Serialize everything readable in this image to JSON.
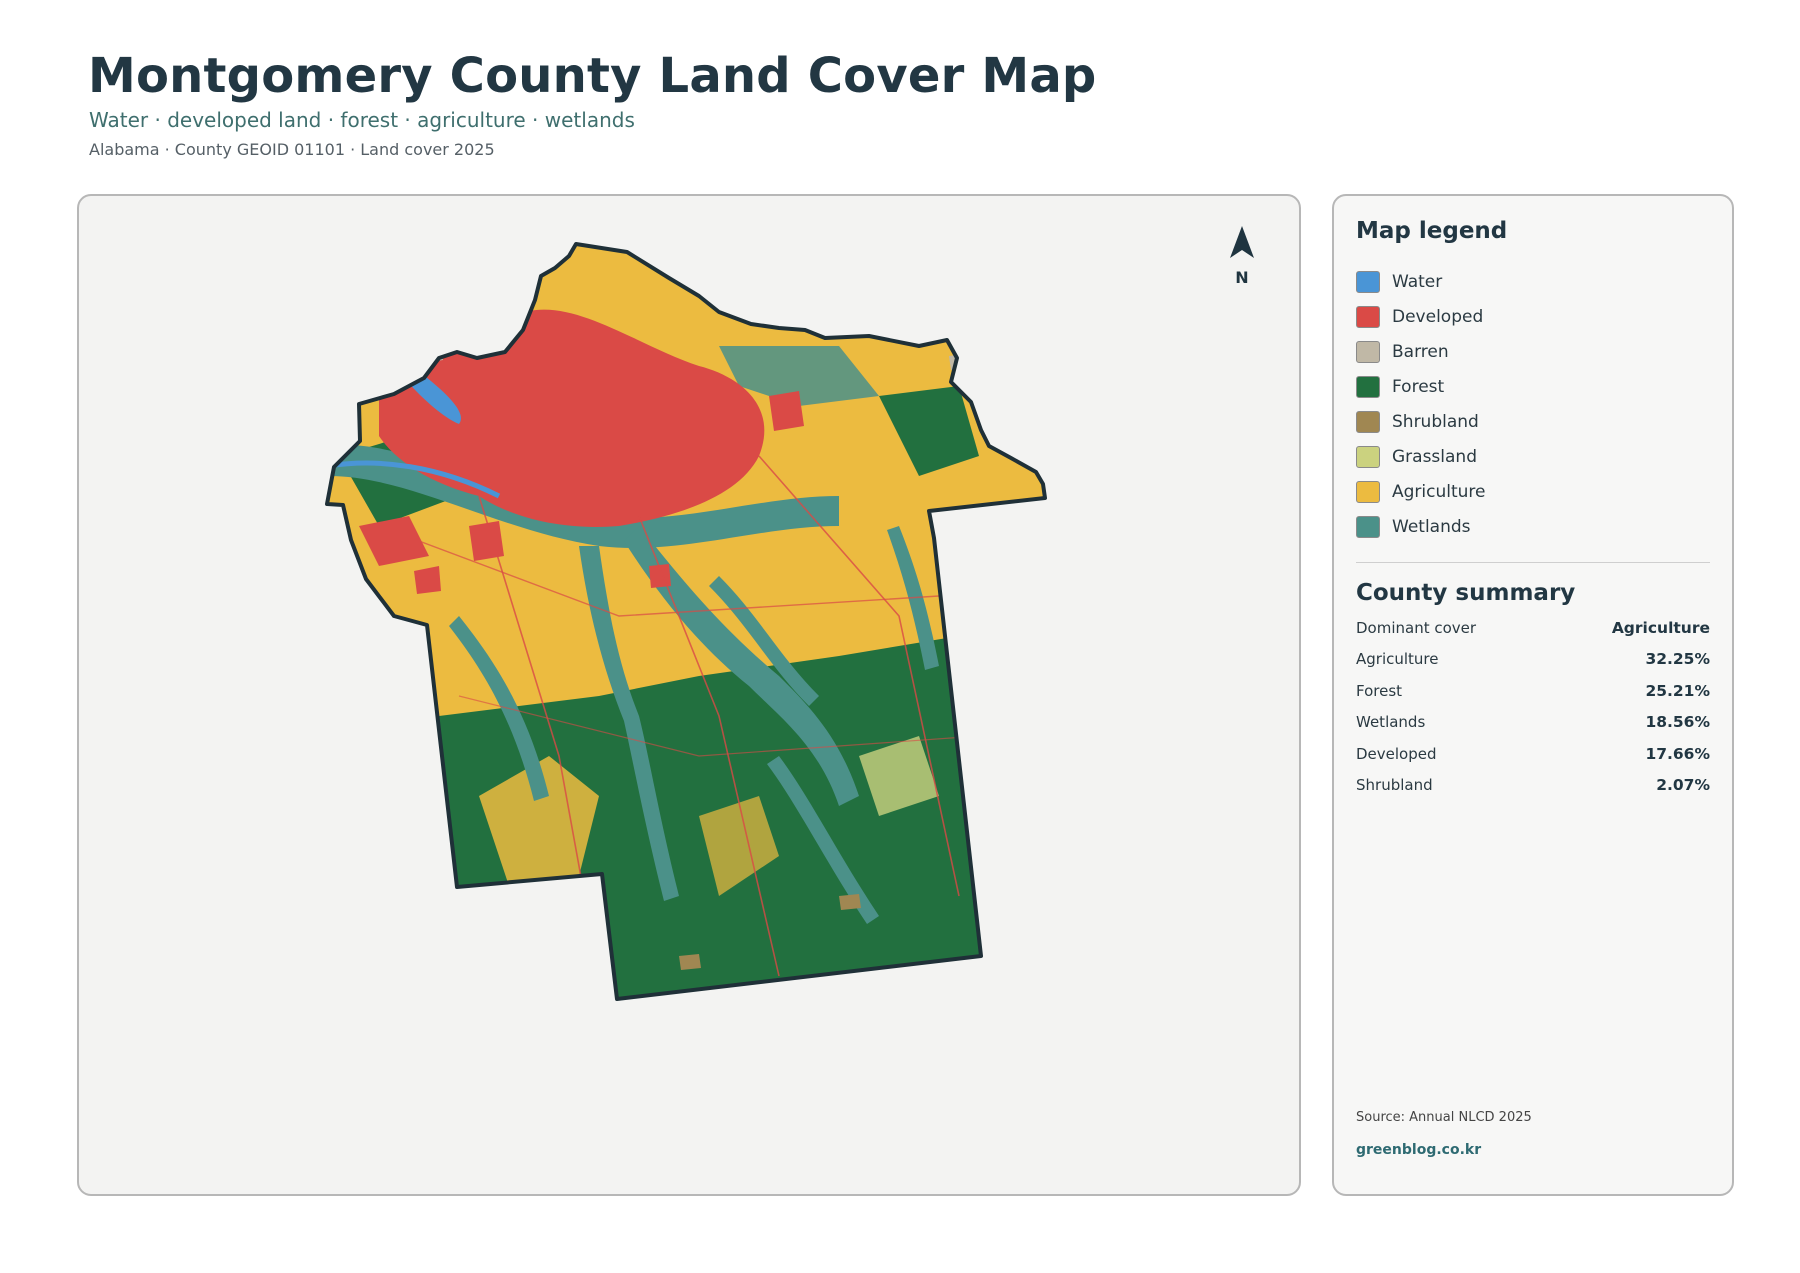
{
  "header": {
    "title": "Montgomery County Land Cover Map",
    "subtitle": "Water · developed land · forest · agriculture · wetlands",
    "meta": "Alabama · County GEOID 01101 · Land cover 2025"
  },
  "map": {
    "north_label": "N"
  },
  "legend": {
    "title": "Map legend",
    "items": [
      {
        "label": "Water",
        "color": "#4a95d6"
      },
      {
        "label": "Developed",
        "color": "#da4a46"
      },
      {
        "label": "Barren",
        "color": "#c0b8a6"
      },
      {
        "label": "Forest",
        "color": "#22703f"
      },
      {
        "label": "Shrubland",
        "color": "#a08752"
      },
      {
        "label": "Grassland",
        "color": "#cbd27f"
      },
      {
        "label": "Agriculture",
        "color": "#ecbb40"
      },
      {
        "label": "Wetlands",
        "color": "#4b9189"
      }
    ]
  },
  "summary": {
    "title": "County summary",
    "rows": [
      {
        "label": "Dominant cover",
        "value": "Agriculture"
      },
      {
        "label": "Agriculture",
        "value": "32.25%"
      },
      {
        "label": "Forest",
        "value": "25.21%"
      },
      {
        "label": "Wetlands",
        "value": "18.56%"
      },
      {
        "label": "Developed",
        "value": "17.66%"
      },
      {
        "label": "Shrubland",
        "value": "2.07%"
      }
    ]
  },
  "footer": {
    "source": "Source: Annual NLCD 2025",
    "site": "greenblog.co.kr"
  }
}
